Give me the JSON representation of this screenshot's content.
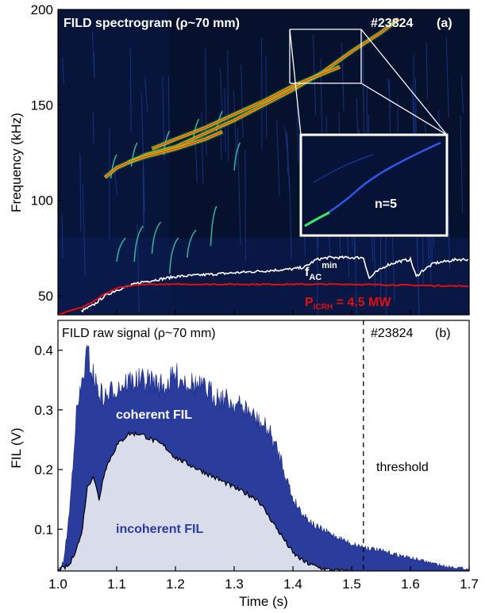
{
  "chart_data": [
    {
      "type": "heatmap",
      "title": "FILD spectrogram (ρ~70 mm)",
      "shot": "#23824",
      "panel": "(a)",
      "ylabel": "Frequency (kHz)",
      "ylim": [
        40,
        200
      ],
      "yticks": [
        "50",
        "100",
        "150",
        "200"
      ],
      "xlim": [
        1.0,
        1.7
      ],
      "inset_label": "n=5",
      "fac_label": {
        "main": "f",
        "sub": "AC",
        "sup": "min"
      },
      "picrh_label": {
        "main": "P",
        "sub": "ICRH",
        "rest": " = 4.5 MW"
      },
      "modes": [
        {
          "x": [
            1.08,
            1.1,
            1.15,
            1.2,
            1.25,
            1.3,
            1.35,
            1.4,
            1.45,
            1.5,
            1.55,
            1.58
          ],
          "y": [
            112,
            117,
            124,
            128,
            135,
            142,
            150,
            158,
            167,
            178,
            188,
            195
          ]
        },
        {
          "x": [
            1.12,
            1.15,
            1.2,
            1.25,
            1.28
          ],
          "y": [
            120,
            123,
            127,
            132,
            136
          ]
        },
        {
          "x": [
            1.16,
            1.2,
            1.25,
            1.3,
            1.35,
            1.4,
            1.44,
            1.48
          ],
          "y": [
            127,
            132,
            138,
            145,
            152,
            160,
            165,
            170
          ]
        }
      ],
      "fac_min": {
        "x": [
          1.04,
          1.06,
          1.08,
          1.1,
          1.12,
          1.14,
          1.16,
          1.2,
          1.25,
          1.3,
          1.35,
          1.4,
          1.42,
          1.44,
          1.46,
          1.48,
          1.52,
          1.53,
          1.54,
          1.56,
          1.58,
          1.6,
          1.61,
          1.62,
          1.64,
          1.66,
          1.68,
          1.7
        ],
        "y": [
          42,
          45,
          50,
          53,
          55,
          57,
          58,
          60,
          61,
          62,
          63,
          64,
          65,
          69,
          70,
          70,
          70,
          59,
          62,
          66,
          68,
          69,
          60,
          63,
          67,
          68,
          69,
          69
        ]
      },
      "p_icrh": {
        "x": [
          1.0,
          1.02,
          1.04,
          1.06,
          1.08,
          1.1,
          1.12,
          1.15,
          1.2,
          1.3,
          1.4,
          1.5,
          1.6,
          1.7
        ],
        "y": [
          40,
          42,
          44,
          47,
          51,
          54,
          55,
          56,
          56,
          56,
          56,
          56,
          55.5,
          55
        ]
      }
    },
    {
      "type": "area",
      "title": "FILD raw signal (ρ~70 mm)",
      "shot": "#23824",
      "panel": "(b)",
      "xlabel": "Time (s)",
      "ylabel": "FIL (V)",
      "xlim": [
        1.0,
        1.7
      ],
      "ylim": [
        0.03,
        0.45
      ],
      "xticks": [
        "1.0",
        "1.1",
        "1.2",
        "1.3",
        "1.4",
        "1.5",
        "1.6",
        "1.7"
      ],
      "yticks": [
        "0.1",
        "0.2",
        "0.3",
        "0.4"
      ],
      "threshold_x": 1.52,
      "threshold_label": "threshold",
      "coherent_label": "coherent FIL",
      "incoherent_label": "incoherent FIL",
      "coherent": {
        "x": [
          1.0,
          1.01,
          1.02,
          1.03,
          1.04,
          1.05,
          1.06,
          1.07,
          1.08,
          1.1,
          1.12,
          1.14,
          1.16,
          1.18,
          1.2,
          1.22,
          1.24,
          1.26,
          1.28,
          1.3,
          1.32,
          1.34,
          1.36,
          1.38,
          1.4,
          1.42,
          1.44,
          1.46,
          1.48,
          1.5,
          1.52,
          1.54,
          1.56,
          1.58,
          1.6,
          1.62,
          1.64,
          1.66,
          1.68,
          1.7
        ],
        "y": [
          0.03,
          0.05,
          0.14,
          0.3,
          0.36,
          0.42,
          0.38,
          0.35,
          0.34,
          0.36,
          0.37,
          0.37,
          0.37,
          0.36,
          0.38,
          0.37,
          0.36,
          0.35,
          0.34,
          0.33,
          0.32,
          0.3,
          0.28,
          0.23,
          0.16,
          0.13,
          0.11,
          0.1,
          0.09,
          0.08,
          0.075,
          0.07,
          0.065,
          0.06,
          0.055,
          0.05,
          0.045,
          0.04,
          0.038,
          0.035
        ]
      },
      "incoherent": {
        "x": [
          1.0,
          1.02,
          1.04,
          1.05,
          1.06,
          1.07,
          1.08,
          1.09,
          1.1,
          1.12,
          1.14,
          1.16,
          1.18,
          1.2,
          1.22,
          1.24,
          1.26,
          1.28,
          1.3,
          1.32,
          1.34,
          1.36,
          1.38,
          1.4,
          1.42,
          1.44,
          1.46,
          1.48,
          1.5
        ],
        "y": [
          0.03,
          0.04,
          0.09,
          0.17,
          0.19,
          0.15,
          0.2,
          0.22,
          0.24,
          0.26,
          0.26,
          0.25,
          0.24,
          0.22,
          0.21,
          0.2,
          0.19,
          0.18,
          0.17,
          0.16,
          0.15,
          0.12,
          0.09,
          0.06,
          0.045,
          0.037,
          0.032,
          0.03,
          0.03
        ]
      }
    }
  ]
}
